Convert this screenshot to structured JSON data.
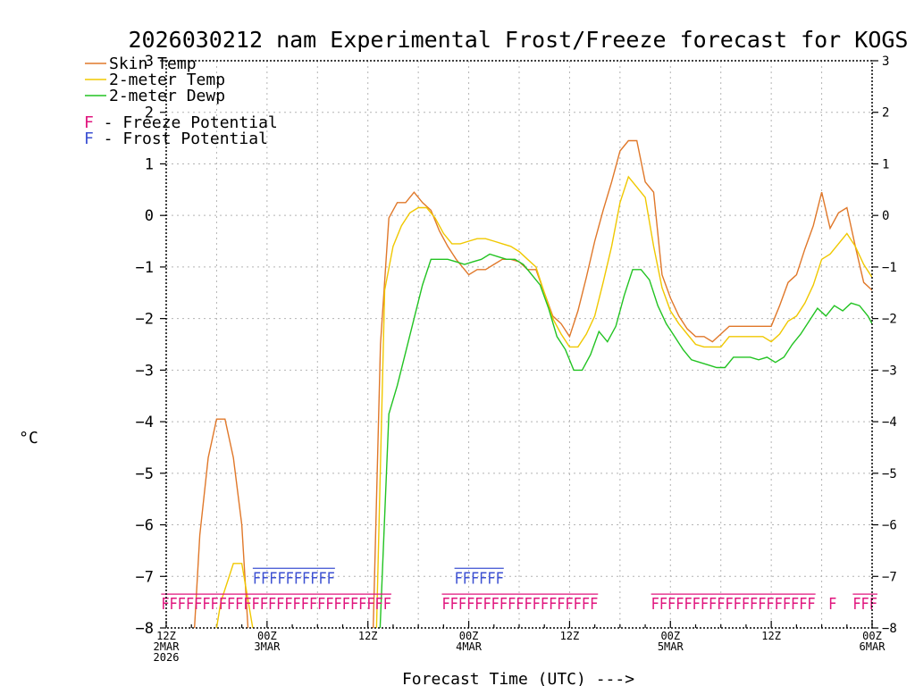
{
  "chart_data": {
    "type": "line",
    "title": "2026030212 nam Experimental Frost/Freeze forecast for KOGS",
    "xlabel": "Forecast Time (UTC) --->",
    "ylabel": "°C",
    "ylim": [
      -8,
      3
    ],
    "xlim": [
      0,
      84
    ],
    "yticks": [
      3,
      2,
      1,
      0,
      -1,
      -2,
      -3,
      -4,
      -5,
      -6,
      -7,
      -8
    ],
    "ytick_labels": [
      "3",
      "2",
      "1",
      "0",
      "−1",
      "−2",
      "−3",
      "−4",
      "−5",
      "−6",
      "−7",
      "−8"
    ],
    "xticks": [
      {
        "x": 0,
        "lines": [
          "12Z",
          "2MAR",
          "2026"
        ]
      },
      {
        "x": 12,
        "lines": [
          "00Z",
          "3MAR"
        ]
      },
      {
        "x": 24,
        "lines": [
          "12Z"
        ]
      },
      {
        "x": 36,
        "lines": [
          "00Z",
          "4MAR"
        ]
      },
      {
        "x": 48,
        "lines": [
          "12Z"
        ]
      },
      {
        "x": 60,
        "lines": [
          "00Z",
          "5MAR"
        ]
      },
      {
        "x": 72,
        "lines": [
          "12Z"
        ]
      },
      {
        "x": 84,
        "lines": [
          "00Z",
          "6MAR"
        ]
      }
    ],
    "grid": true,
    "legend": {
      "position": "top-left",
      "series": [
        {
          "name": "Skin Temp",
          "color": "#e0782a"
        },
        {
          "name": "2-meter Temp",
          "color": "#f0c800"
        },
        {
          "name": "2-meter Dewp",
          "color": "#22c322"
        }
      ],
      "flags": [
        {
          "letter": "F",
          "text": " - Freeze Potential",
          "color": "#e0147d"
        },
        {
          "letter": "F",
          "text": " - Frost Potential",
          "color": "#3c50d2"
        }
      ]
    },
    "series": [
      {
        "name": "Skin Temp",
        "color": "#e0782a",
        "points": [
          [
            3.3,
            -8.2
          ],
          [
            4,
            -6.2
          ],
          [
            5,
            -4.7
          ],
          [
            6,
            -3.95
          ],
          [
            7,
            -3.95
          ],
          [
            8,
            -4.7
          ],
          [
            9,
            -6.0
          ],
          [
            9.8,
            -8.2
          ],
          [
            24.6,
            -8.2
          ],
          [
            25.5,
            -2.5
          ],
          [
            26.5,
            -0.05
          ],
          [
            27.5,
            0.25
          ],
          [
            28.5,
            0.25
          ],
          [
            29.5,
            0.45
          ],
          [
            30.5,
            0.25
          ],
          [
            31.5,
            0.1
          ],
          [
            32.5,
            -0.3
          ],
          [
            33.5,
            -0.6
          ],
          [
            34.5,
            -0.85
          ],
          [
            35.5,
            -1.05
          ],
          [
            36,
            -1.15
          ],
          [
            37,
            -1.05
          ],
          [
            38,
            -1.05
          ],
          [
            39,
            -0.95
          ],
          [
            40,
            -0.85
          ],
          [
            41,
            -0.85
          ],
          [
            42,
            -0.9
          ],
          [
            43,
            -1.05
          ],
          [
            44,
            -1.05
          ],
          [
            45,
            -1.5
          ],
          [
            46,
            -1.95
          ],
          [
            47,
            -2.1
          ],
          [
            48,
            -2.35
          ],
          [
            49,
            -1.85
          ],
          [
            50,
            -1.2
          ],
          [
            51,
            -0.5
          ],
          [
            52,
            0.1
          ],
          [
            53,
            0.65
          ],
          [
            54,
            1.25
          ],
          [
            55,
            1.45
          ],
          [
            56,
            1.45
          ],
          [
            57,
            0.65
          ],
          [
            58,
            0.45
          ],
          [
            59,
            -1.15
          ],
          [
            60,
            -1.6
          ],
          [
            61,
            -1.95
          ],
          [
            62,
            -2.2
          ],
          [
            63,
            -2.35
          ],
          [
            64,
            -2.35
          ],
          [
            65,
            -2.45
          ],
          [
            66,
            -2.3
          ],
          [
            67,
            -2.15
          ],
          [
            68,
            -2.15
          ],
          [
            69,
            -2.15
          ],
          [
            70,
            -2.15
          ],
          [
            71,
            -2.15
          ],
          [
            72,
            -2.15
          ],
          [
            73,
            -1.75
          ],
          [
            74,
            -1.3
          ],
          [
            75,
            -1.15
          ],
          [
            76,
            -0.65
          ],
          [
            77,
            -0.2
          ],
          [
            78,
            0.45
          ],
          [
            79,
            -0.25
          ],
          [
            80,
            0.05
          ],
          [
            81,
            0.15
          ],
          [
            82,
            -0.6
          ],
          [
            83,
            -1.3
          ],
          [
            84,
            -1.45
          ]
        ]
      },
      {
        "name": "2-meter Temp",
        "color": "#f0c800",
        "points": [
          [
            5.8,
            -8.2
          ],
          [
            6.5,
            -7.5
          ],
          [
            7.5,
            -7.0
          ],
          [
            8,
            -6.75
          ],
          [
            9,
            -6.75
          ],
          [
            10.5,
            -8.2
          ],
          [
            25,
            -8.2
          ],
          [
            26,
            -1.45
          ],
          [
            27,
            -0.6
          ],
          [
            28,
            -0.2
          ],
          [
            29,
            0.05
          ],
          [
            30,
            0.15
          ],
          [
            31,
            0.15
          ],
          [
            32,
            -0.05
          ],
          [
            33,
            -0.35
          ],
          [
            34,
            -0.55
          ],
          [
            35,
            -0.55
          ],
          [
            36,
            -0.5
          ],
          [
            37,
            -0.45
          ],
          [
            38,
            -0.45
          ],
          [
            39,
            -0.5
          ],
          [
            40,
            -0.55
          ],
          [
            41,
            -0.6
          ],
          [
            42,
            -0.7
          ],
          [
            43,
            -0.85
          ],
          [
            44,
            -1.0
          ],
          [
            45,
            -1.5
          ],
          [
            46,
            -2.0
          ],
          [
            47,
            -2.3
          ],
          [
            48,
            -2.55
          ],
          [
            49,
            -2.55
          ],
          [
            50,
            -2.3
          ],
          [
            51,
            -1.95
          ],
          [
            52,
            -1.3
          ],
          [
            53,
            -0.6
          ],
          [
            54,
            0.25
          ],
          [
            55,
            0.75
          ],
          [
            56,
            0.55
          ],
          [
            57,
            0.35
          ],
          [
            58,
            -0.6
          ],
          [
            59,
            -1.4
          ],
          [
            60,
            -1.85
          ],
          [
            61,
            -2.1
          ],
          [
            62,
            -2.3
          ],
          [
            63,
            -2.5
          ],
          [
            64,
            -2.55
          ],
          [
            65,
            -2.55
          ],
          [
            66,
            -2.55
          ],
          [
            67,
            -2.35
          ],
          [
            68,
            -2.35
          ],
          [
            69,
            -2.35
          ],
          [
            70,
            -2.35
          ],
          [
            71,
            -2.35
          ],
          [
            72,
            -2.45
          ],
          [
            73,
            -2.3
          ],
          [
            74,
            -2.05
          ],
          [
            75,
            -1.95
          ],
          [
            76,
            -1.7
          ],
          [
            77,
            -1.35
          ],
          [
            78,
            -0.85
          ],
          [
            79,
            -0.75
          ],
          [
            80,
            -0.55
          ],
          [
            81,
            -0.35
          ],
          [
            82,
            -0.6
          ],
          [
            83,
            -0.95
          ],
          [
            84,
            -1.2
          ]
        ]
      },
      {
        "name": "2-meter Dewp",
        "color": "#22c322",
        "points": [
          [
            25.4,
            -8.2
          ],
          [
            26.5,
            -3.85
          ],
          [
            27.5,
            -3.3
          ],
          [
            28.5,
            -2.65
          ],
          [
            29.5,
            -2.0
          ],
          [
            30.5,
            -1.35
          ],
          [
            31.5,
            -0.85
          ],
          [
            32.5,
            -0.85
          ],
          [
            33.5,
            -0.85
          ],
          [
            34.5,
            -0.9
          ],
          [
            35.5,
            -0.95
          ],
          [
            36.5,
            -0.9
          ],
          [
            37.5,
            -0.85
          ],
          [
            38.5,
            -0.75
          ],
          [
            39.5,
            -0.8
          ],
          [
            40.5,
            -0.85
          ],
          [
            41.5,
            -0.85
          ],
          [
            42.5,
            -0.95
          ],
          [
            43.5,
            -1.15
          ],
          [
            44.5,
            -1.35
          ],
          [
            45.5,
            -1.8
          ],
          [
            46.5,
            -2.35
          ],
          [
            47.5,
            -2.6
          ],
          [
            48.5,
            -3.0
          ],
          [
            49.5,
            -3.0
          ],
          [
            50.5,
            -2.7
          ],
          [
            51.5,
            -2.25
          ],
          [
            52.5,
            -2.45
          ],
          [
            53.5,
            -2.15
          ],
          [
            54.5,
            -1.55
          ],
          [
            55.5,
            -1.05
          ],
          [
            56.5,
            -1.05
          ],
          [
            57.5,
            -1.25
          ],
          [
            58.5,
            -1.75
          ],
          [
            59.5,
            -2.1
          ],
          [
            60.5,
            -2.35
          ],
          [
            61.5,
            -2.6
          ],
          [
            62.5,
            -2.8
          ],
          [
            63.5,
            -2.85
          ],
          [
            64.5,
            -2.9
          ],
          [
            65.5,
            -2.95
          ],
          [
            66.5,
            -2.95
          ],
          [
            67.5,
            -2.75
          ],
          [
            68.5,
            -2.75
          ],
          [
            69.5,
            -2.75
          ],
          [
            70.5,
            -2.8
          ],
          [
            71.5,
            -2.75
          ],
          [
            72.5,
            -2.85
          ],
          [
            73.5,
            -2.75
          ],
          [
            74.5,
            -2.5
          ],
          [
            75.5,
            -2.3
          ],
          [
            76.5,
            -2.05
          ],
          [
            77.5,
            -1.8
          ],
          [
            78.5,
            -1.95
          ],
          [
            79.5,
            -1.75
          ],
          [
            80.5,
            -1.85
          ],
          [
            81.5,
            -1.7
          ],
          [
            82.5,
            -1.75
          ],
          [
            83.5,
            -1.95
          ],
          [
            84,
            -2.1
          ]
        ]
      }
    ],
    "potential_rows": [
      {
        "name": "Frost Potential",
        "color": "#3c50d2",
        "y": -7.0,
        "segments": [
          {
            "x": 10.3,
            "text": "FFFFFFFFFF",
            "underline": true
          },
          {
            "x": 34.3,
            "text": "FFFFFF",
            "underline": true
          }
        ]
      },
      {
        "name": "Freeze Potential",
        "color": "#e0147d",
        "y": -7.5,
        "segments": [
          {
            "x": -0.6,
            "text": "FFFFFFFFFFFFFFFFFFFFFFFFFFFF",
            "underline": true
          },
          {
            "x": 32.8,
            "text": "FFFFFFFFFFFFFFFFFFF",
            "underline": true
          },
          {
            "x": 57.7,
            "text": "FFFFFFFFFFFFFFFFFFFF",
            "underline": true
          },
          {
            "x": 78.8,
            "text": "F",
            "underline": false
          },
          {
            "x": 81.7,
            "text": "FFF",
            "underline": true
          }
        ]
      }
    ]
  }
}
